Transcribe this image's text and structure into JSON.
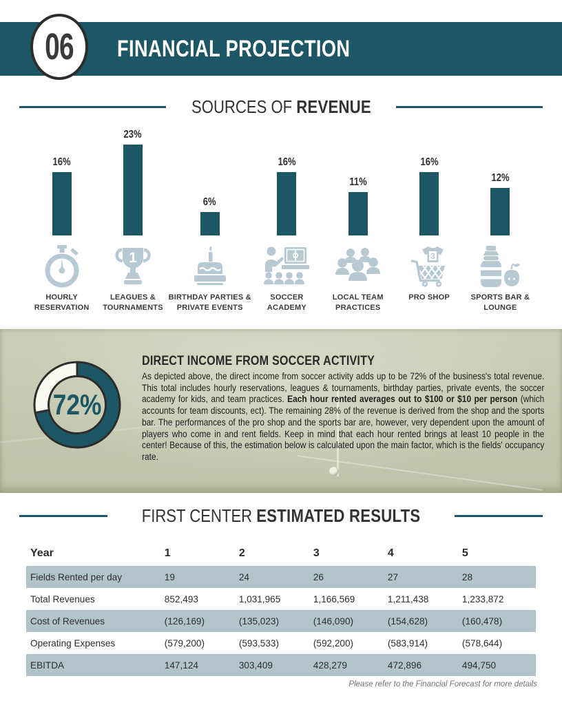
{
  "colors": {
    "teal": "#1d5766",
    "icon": "#b7c9d3",
    "shade": "#b1c4c9",
    "field": "#d2d5bf"
  },
  "header": {
    "number": "06",
    "title": "FINANCIAL PROJECTION"
  },
  "revenue_section": {
    "title_light": "SOURCES OF",
    "title_bold": "REVENUE",
    "items": [
      {
        "icon": "stopwatch-icon",
        "value": "16%",
        "line1": "HOURLY",
        "line2": "RESERVATION"
      },
      {
        "icon": "trophy-icon",
        "value": "23%",
        "line1": "LEAGUES &",
        "line2": "TOURNAMENTS"
      },
      {
        "icon": "birthday-cake-icon",
        "value": "6%",
        "line1": "BIRTHDAY PARTIES &",
        "line2": "PRIVATE EVENTS"
      },
      {
        "icon": "soccer-academy-icon",
        "value": "16%",
        "line1": "SOCCER",
        "line2": "ACADEMY"
      },
      {
        "icon": "team-group-icon",
        "value": "11%",
        "line1": "LOCAL TEAM",
        "line2": "PRACTICES"
      },
      {
        "icon": "shopping-cart-icon",
        "value": "16%",
        "line1": "PRO SHOP",
        "line2": ""
      },
      {
        "icon": "bottle-apple-icon",
        "value": "12%",
        "line1": "SPORTS BAR &",
        "line2": "LOUNGE"
      }
    ]
  },
  "chart_data": [
    {
      "type": "bar",
      "title": "SOURCES OF REVENUE",
      "categories": [
        "HOURLY RESERVATION",
        "LEAGUES & TOURNAMENTS",
        "BIRTHDAY PARTIES & PRIVATE EVENTS",
        "SOCCER ACADEMY",
        "LOCAL TEAM PRACTICES",
        "PRO SHOP",
        "SPORTS BAR & LOUNGE"
      ],
      "values": [
        16,
        23,
        6,
        16,
        11,
        16,
        12
      ],
      "unit": "%",
      "data_labels": [
        "16%",
        "23%",
        "6%",
        "16%",
        "11%",
        "16%",
        "12%"
      ],
      "ylim": [
        0,
        25
      ],
      "bar_color": "#1d5766",
      "axes": "hidden",
      "legend": "none"
    },
    {
      "type": "pie",
      "subtype": "donut",
      "labels": [
        "Direct income from soccer activity",
        "Pro shop & sports bar"
      ],
      "values": [
        72,
        28
      ],
      "colors": [
        "#1d5766",
        "#fbfbf4"
      ],
      "center_label": "72%",
      "start_angle": "top",
      "direction": "clockwise"
    }
  ],
  "income_section": {
    "heading": "DIRECT INCOME FROM SOCCER ACTIVITY",
    "paragraph": [
      {
        "bold": false,
        "text": "As depicted above, the direct income from soccer activity adds up to be 72% of the business's total revenue. This total includes hourly reservations, leagues & tournaments, birthday parties, private events, the soccer academy for kids, and team practices. "
      },
      {
        "bold": true,
        "text": "Each hour rented averages out to $100 or $10 per person"
      },
      {
        "bold": false,
        "text": " (which accounts for team discounts, ect). The remaining 28% of the revenue is derived from the shop and the sports bar. The performances of the pro shop and the sports bar are, however, very dependent upon the amount of players who come in and rent fields. Keep in mind that each hour rented brings at least 10 people in the center! Because of this, the estimation below is calculated upon the main factor, which is the fields' occupancy rate."
      }
    ]
  },
  "results_section": {
    "title_light": "FIRST CENTER",
    "title_bold": "ESTIMATED RESULTS",
    "table": {
      "header": [
        "Year",
        "1",
        "2",
        "3",
        "4",
        "5"
      ],
      "rows": [
        {
          "label": "Fields Rented per day",
          "values": [
            "19",
            "24",
            "26",
            "27",
            "28"
          ],
          "shaded": true
        },
        {
          "label": "Total Revenues",
          "values": [
            "852,493",
            "1,031,965",
            "1,166,569",
            "1,211,438",
            "1,233,872"
          ],
          "shaded": false
        },
        {
          "label": "Cost of Revenues",
          "values": [
            "(126,169)",
            "(135,023)",
            "(146,090)",
            "(154,628)",
            "(160,478)"
          ],
          "shaded": true
        },
        {
          "label": "Operating Expenses",
          "values": [
            "(579,200)",
            "(593,533)",
            "(592,200)",
            "(583,914)",
            "(578,644)"
          ],
          "shaded": false
        },
        {
          "label": "EBITDA",
          "values": [
            "147,124",
            "303,409",
            "428,279",
            "472,896",
            "494,750"
          ],
          "shaded": true
        }
      ]
    },
    "footnote": "Please refer to the Financial Forecast for more details"
  }
}
